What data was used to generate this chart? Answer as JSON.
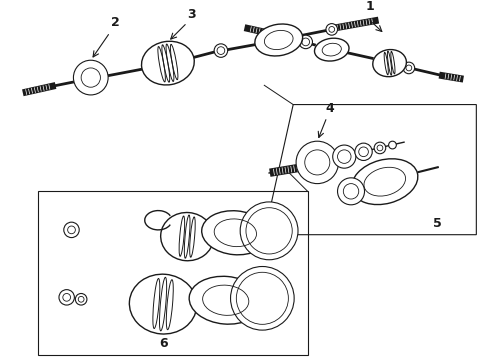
{
  "background_color": "#ffffff",
  "line_color": "#1a1a1a",
  "label_color": "#111111",
  "fig_width": 4.9,
  "fig_height": 3.6,
  "dpi": 100
}
